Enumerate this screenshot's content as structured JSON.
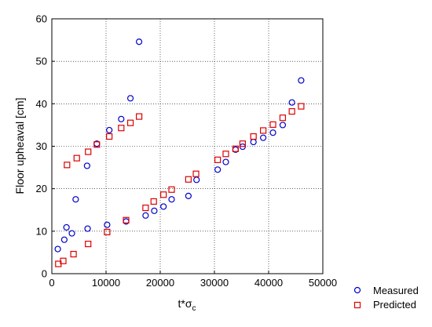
{
  "chart_data": {
    "type": "scatter",
    "title": "",
    "xlabel": {
      "base": "t*σ",
      "sub": "c"
    },
    "ylabel": "Floor upheaval [cm]",
    "xlim": [
      0,
      50000
    ],
    "ylim": [
      0,
      60
    ],
    "xticks": [
      0,
      10000,
      20000,
      30000,
      40000,
      50000
    ],
    "yticks": [
      0,
      10,
      20,
      30,
      40,
      50,
      60
    ],
    "grid": true,
    "legend": "bottom-right, outside plot",
    "series": [
      {
        "name": "Measured",
        "marker": "circle",
        "color": "#0000cc",
        "points": [
          [
            1100,
            5.8
          ],
          [
            2300,
            8.0
          ],
          [
            2700,
            10.9
          ],
          [
            3700,
            9.5
          ],
          [
            4400,
            17.5
          ],
          [
            6600,
            10.6
          ],
          [
            6500,
            25.4
          ],
          [
            8300,
            30.6
          ],
          [
            10200,
            11.5
          ],
          [
            10600,
            33.8
          ],
          [
            12800,
            36.4
          ],
          [
            13700,
            12.3
          ],
          [
            14500,
            41.3
          ],
          [
            16100,
            54.6
          ],
          [
            17300,
            13.7
          ],
          [
            18900,
            14.8
          ],
          [
            20600,
            15.8
          ],
          [
            22100,
            17.5
          ],
          [
            25200,
            18.3
          ],
          [
            26700,
            22.1
          ],
          [
            30600,
            24.5
          ],
          [
            32100,
            26.3
          ],
          [
            33900,
            29.2
          ],
          [
            35200,
            29.9
          ],
          [
            37200,
            31.0
          ],
          [
            39000,
            32.0
          ],
          [
            40800,
            33.2
          ],
          [
            42600,
            35.0
          ],
          [
            44300,
            40.3
          ],
          [
            46000,
            45.5
          ]
        ]
      },
      {
        "name": "Predicted",
        "marker": "square",
        "color": "#dd0000",
        "points": [
          [
            1200,
            2.3
          ],
          [
            2100,
            3.0
          ],
          [
            2800,
            25.6
          ],
          [
            4000,
            4.6
          ],
          [
            4600,
            27.2
          ],
          [
            6700,
            7.0
          ],
          [
            6700,
            28.7
          ],
          [
            8300,
            30.4
          ],
          [
            10200,
            9.8
          ],
          [
            10600,
            32.3
          ],
          [
            12800,
            34.3
          ],
          [
            13700,
            12.6
          ],
          [
            14500,
            35.5
          ],
          [
            16100,
            37.0
          ],
          [
            17300,
            15.5
          ],
          [
            18800,
            17.0
          ],
          [
            20600,
            18.6
          ],
          [
            22100,
            19.8
          ],
          [
            25200,
            22.2
          ],
          [
            26600,
            23.5
          ],
          [
            30600,
            26.8
          ],
          [
            32100,
            28.2
          ],
          [
            33900,
            29.4
          ],
          [
            35200,
            30.6
          ],
          [
            37200,
            32.3
          ],
          [
            39000,
            33.7
          ],
          [
            40800,
            35.1
          ],
          [
            42600,
            36.7
          ],
          [
            44300,
            38.2
          ],
          [
            46000,
            39.4
          ]
        ]
      }
    ]
  }
}
